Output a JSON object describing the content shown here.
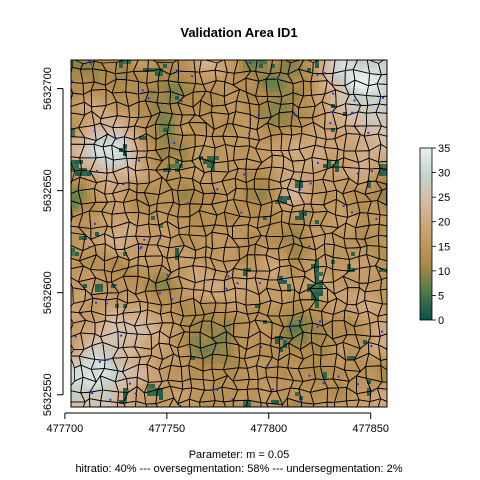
{
  "chart_data": {
    "type": "heatmap",
    "title": "Validation Area ID1",
    "xlabel": "",
    "ylabel": "",
    "x_ticks": [
      477700,
      477750,
      477800,
      477850
    ],
    "x_tick_labels": [
      "477700",
      "477750",
      "477800",
      "477850"
    ],
    "y_ticks": [
      5632550,
      5632600,
      5632650,
      5632700
    ],
    "y_tick_labels": [
      "5632550",
      "5632600",
      "5632650",
      "5632700"
    ],
    "xlim": [
      477703,
      477858
    ],
    "ylim": [
      5632544,
      5632714
    ],
    "colorbar": {
      "ticks": [
        0,
        5,
        10,
        15,
        20,
        25,
        30,
        35
      ],
      "tick_labels": [
        "0",
        "5",
        "10",
        "15",
        "20",
        "25",
        "30",
        "35"
      ],
      "range": [
        0,
        35
      ],
      "colors": [
        "#0b4f4c",
        "#4f7a48",
        "#b08a4c",
        "#c89f6c",
        "#d6b79e",
        "#c8d2cc",
        "#e6f2f2"
      ]
    },
    "overlay": {
      "segment_outline_color": "#000000",
      "marker_color": "#2b2bff"
    },
    "caption": {
      "line1": "Parameter: m = 0.05",
      "line2": "hitratio: 40% --- oversegmentation: 58% --- undersegmentation: 2%"
    }
  }
}
